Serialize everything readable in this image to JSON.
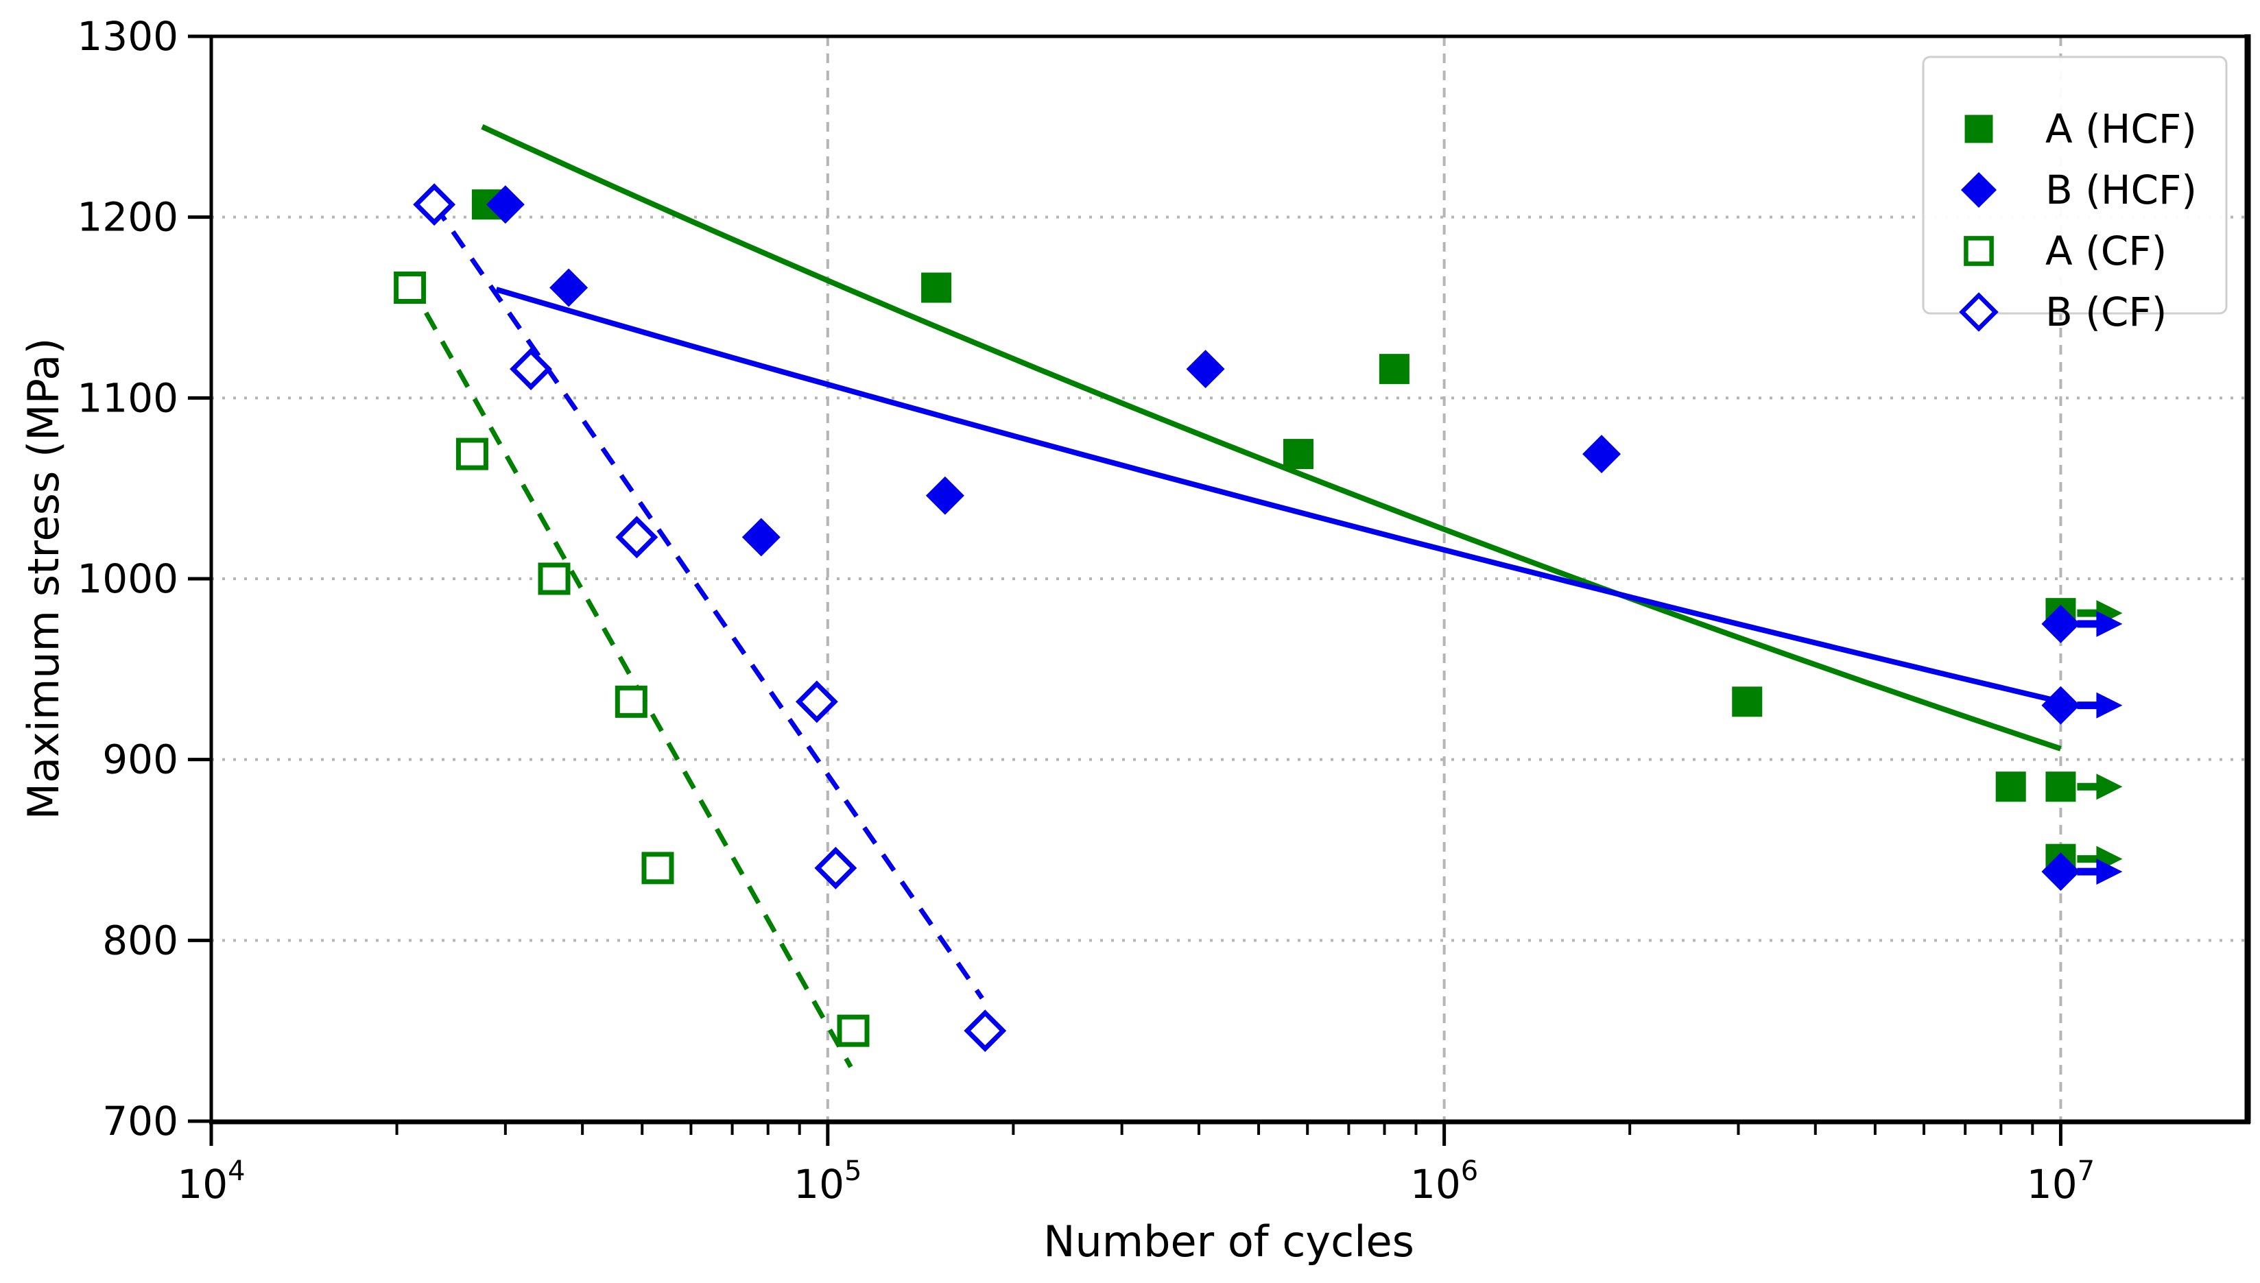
{
  "figure": {
    "background": "#ffffff",
    "text_color": "#000000",
    "grid_color": "#b5b5b5",
    "legend_border_color": "#cfcfcf"
  },
  "chart_data": {
    "type": "scatter",
    "title": "",
    "xlabel": "Number of cycles",
    "ylabel": "Maximum stress (MPa)",
    "x_scale": "log",
    "xlim": [
      10000,
      20000000
    ],
    "ylim": [
      700,
      1300
    ],
    "grid": {
      "horizontal_at": [
        800,
        900,
        1000,
        1100,
        1200
      ],
      "vertical_at": [
        100000,
        1000000,
        10000000
      ],
      "style": "dotted"
    },
    "x_major_ticks": [
      {
        "value": 10000,
        "base": "10",
        "exp": "4"
      },
      {
        "value": 100000,
        "base": "10",
        "exp": "5"
      },
      {
        "value": 1000000,
        "base": "10",
        "exp": "6"
      },
      {
        "value": 10000000,
        "base": "10",
        "exp": "7"
      }
    ],
    "x_minor_tick_decades": [
      10000,
      100000,
      1000000,
      10000000
    ],
    "y_ticks": [
      700,
      800,
      900,
      1000,
      1100,
      1200,
      1300
    ],
    "legend": {
      "position": "upper right",
      "items": [
        "A (HCF)",
        "B (HCF)",
        "A (CF)",
        "B (CF)"
      ]
    },
    "runout_meaning": "right-arrow on marker = run-out (no failure)",
    "series": [
      {
        "key": "a-hcf",
        "name": "A (HCF)",
        "color": "#008000",
        "marker": "square",
        "fill": "solid",
        "points": [
          [
            28000,
            1207
          ],
          [
            150000,
            1161
          ],
          [
            580000,
            1069
          ],
          [
            830000,
            1116
          ],
          [
            3100000,
            932
          ],
          [
            8300000,
            885
          ]
        ],
        "runouts": [
          [
            10000000,
            981
          ],
          [
            10000000,
            885
          ],
          [
            10000000,
            845
          ]
        ],
        "fit_line": {
          "style": "solid",
          "curve": "power",
          "from": [
            27500,
            1250
          ],
          "to": [
            10000000,
            906
          ]
        }
      },
      {
        "key": "b-hcf",
        "name": "B (HCF)",
        "color": "#0000ee",
        "marker": "diamond",
        "fill": "solid",
        "points": [
          [
            30000,
            1207
          ],
          [
            38000,
            1161
          ],
          [
            78000,
            1023
          ],
          [
            155000,
            1046
          ],
          [
            410000,
            1116
          ],
          [
            1800000,
            1069
          ]
        ],
        "runouts": [
          [
            10000000,
            975
          ],
          [
            10000000,
            930
          ],
          [
            10000000,
            838
          ]
        ],
        "fit_line": {
          "style": "solid",
          "curve": "power",
          "from": [
            29000,
            1160
          ],
          "to": [
            10000000,
            932
          ]
        }
      },
      {
        "key": "a-cf",
        "name": "A (CF)",
        "color": "#008000",
        "marker": "square",
        "fill": "open",
        "points": [
          [
            21000,
            1161
          ],
          [
            26500,
            1069
          ],
          [
            36000,
            1000
          ],
          [
            48000,
            932
          ],
          [
            53000,
            840
          ],
          [
            110000,
            750
          ]
        ],
        "runouts": [],
        "fit_line": {
          "style": "dashed",
          "curve": "loglinear",
          "from": [
            21000,
            1163
          ],
          "to": [
            109000,
            730
          ]
        }
      },
      {
        "key": "b-cf",
        "name": "B (CF)",
        "color": "#0000ee",
        "marker": "diamond",
        "fill": "open",
        "points": [
          [
            23000,
            1207
          ],
          [
            33000,
            1116
          ],
          [
            49000,
            1023
          ],
          [
            96000,
            932
          ],
          [
            103000,
            840
          ],
          [
            180000,
            750
          ]
        ],
        "runouts": [],
        "fit_line": {
          "style": "dashed",
          "curve": "loglinear",
          "from": [
            23000,
            1207
          ],
          "to": [
            178000,
            768
          ]
        }
      }
    ]
  }
}
